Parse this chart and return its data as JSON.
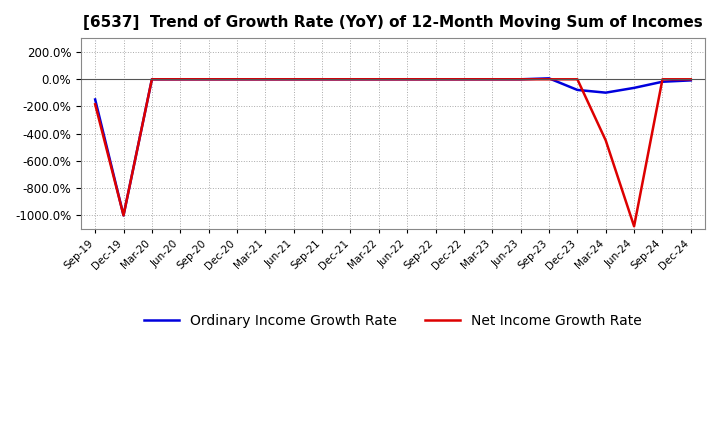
{
  "title": "[6537]  Trend of Growth Rate (YoY) of 12-Month Moving Sum of Incomes",
  "title_fontsize": 11,
  "ylim": [
    -1100,
    300
  ],
  "yticks": [
    200,
    0,
    -200,
    -400,
    -600,
    -800,
    -1000
  ],
  "background_color": "#ffffff",
  "grid_color": "#aaaaaa",
  "x_labels": [
    "Sep-19",
    "Dec-19",
    "Mar-20",
    "Jun-20",
    "Sep-20",
    "Dec-20",
    "Mar-21",
    "Jun-21",
    "Sep-21",
    "Dec-21",
    "Mar-22",
    "Jun-22",
    "Sep-22",
    "Dec-22",
    "Mar-23",
    "Jun-23",
    "Sep-23",
    "Dec-23",
    "Mar-24",
    "Jun-24",
    "Sep-24",
    "Dec-24"
  ],
  "ordinary_income": [
    -150,
    -1000,
    -2,
    -2,
    -2,
    -2,
    -2,
    -2,
    -2,
    -2,
    -2,
    -2,
    -2,
    -2,
    -2,
    -2,
    5,
    -80,
    -100,
    -65,
    -20,
    -10
  ],
  "net_income": [
    -185,
    -1000,
    -2,
    -2,
    -2,
    -2,
    -2,
    -2,
    -2,
    -2,
    -2,
    -2,
    -2,
    -2,
    -2,
    -2,
    -2,
    -2,
    -450,
    -1080,
    -2,
    -2
  ],
  "ordinary_color": "#0000dd",
  "net_color": "#dd0000",
  "line_width": 1.8,
  "legend_fontsize": 10
}
